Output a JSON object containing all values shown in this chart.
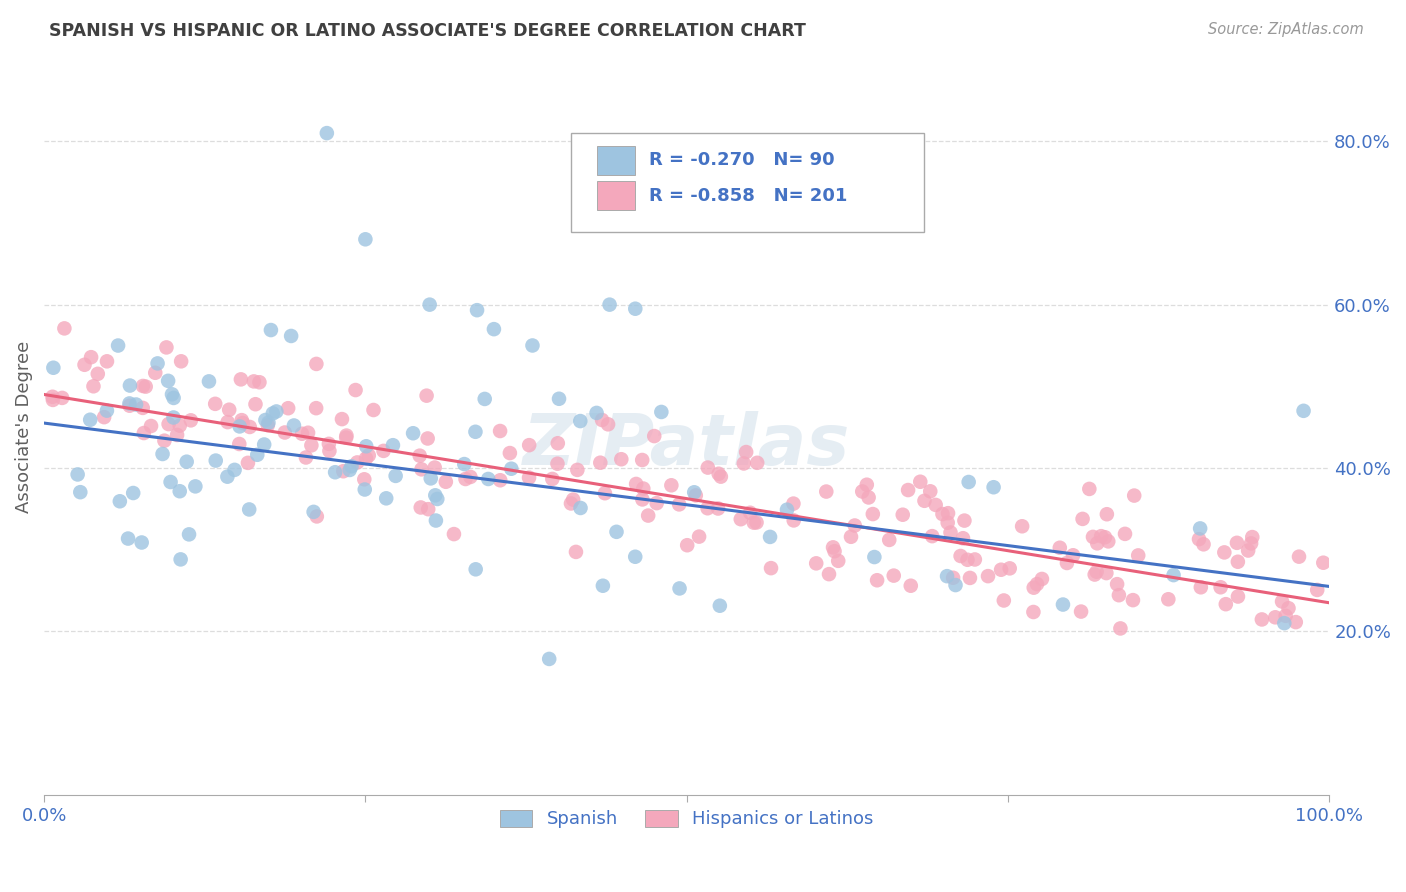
{
  "title": "SPANISH VS HISPANIC OR LATINO ASSOCIATE'S DEGREE CORRELATION CHART",
  "source": "Source: ZipAtlas.com",
  "ylabel": "Associate's Degree",
  "watermark": "ZIPatlas",
  "legend": {
    "blue_R": "-0.270",
    "blue_N": "90",
    "pink_R": "-0.858",
    "pink_N": "201"
  },
  "legend_labels": [
    "Spanish",
    "Hispanics or Latinos"
  ],
  "xlim": [
    0.0,
    1.0
  ],
  "ylim": [
    0.0,
    0.9
  ],
  "x_ticks": [
    0.0,
    0.25,
    0.5,
    0.75,
    1.0
  ],
  "x_tick_labels": [
    "0.0%",
    "",
    "",
    "",
    "100.0%"
  ],
  "y_tick_labels_right": [
    "20.0%",
    "40.0%",
    "60.0%",
    "80.0%"
  ],
  "y_tick_vals_right": [
    0.2,
    0.4,
    0.6,
    0.8
  ],
  "blue_color": "#9ec4e0",
  "pink_color": "#f4a8bc",
  "blue_line_color": "#4472c4",
  "pink_line_color": "#e8607a",
  "grid_color": "#dddddd",
  "title_color": "#404040",
  "axis_label_color": "#606060",
  "tick_color": "#4472c4",
  "background_color": "#ffffff",
  "blue_N": 90,
  "pink_N": 201,
  "blue_R": -0.27,
  "pink_R": -0.858,
  "blue_line_start_y": 0.455,
  "blue_line_end_y": 0.255,
  "pink_line_start_y": 0.49,
  "pink_line_end_y": 0.235
}
